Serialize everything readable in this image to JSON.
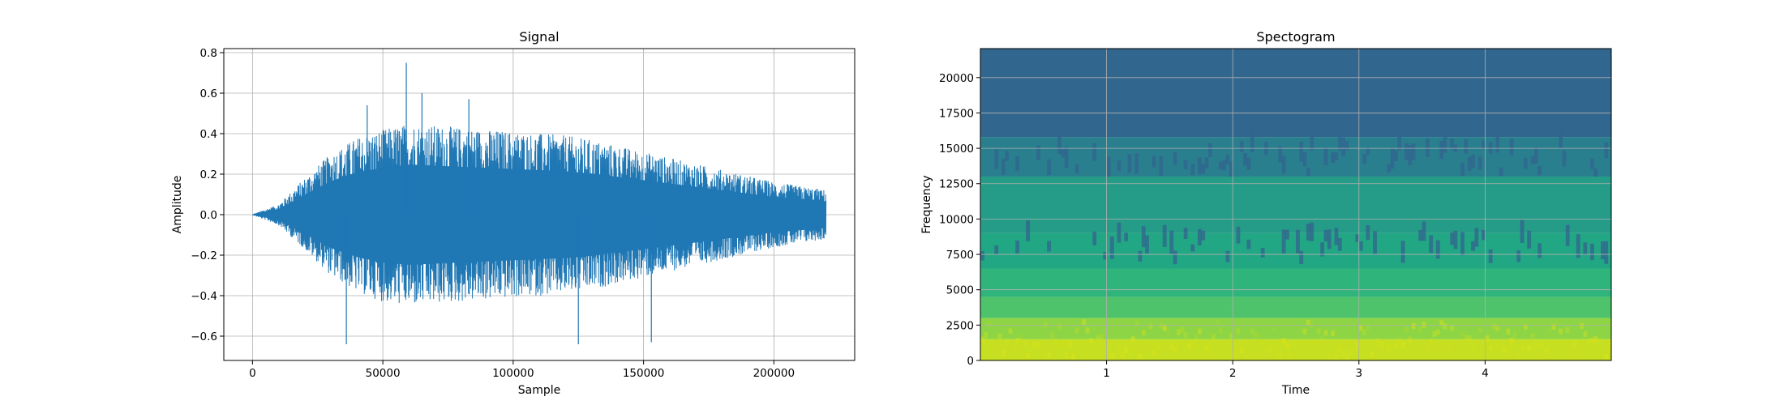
{
  "chart_data": [
    {
      "type": "line",
      "title": "Signal",
      "xlabel": "Sample",
      "ylabel": "Amplitude",
      "xlim": [
        -11000,
        231000
      ],
      "ylim": [
        -0.72,
        0.82
      ],
      "xticks": [
        0,
        50000,
        100000,
        150000,
        200000
      ],
      "xtick_labels": [
        "0",
        "50000",
        "100000",
        "150000",
        "200000"
      ],
      "yticks": [
        -0.6,
        -0.4,
        -0.2,
        0.0,
        0.2,
        0.4,
        0.6,
        0.8
      ],
      "ytick_labels": [
        "−0.6",
        "−0.4",
        "−0.2",
        "0.0",
        "0.2",
        "0.4",
        "0.6",
        "0.8"
      ],
      "grid": true,
      "color": "#1f77b4",
      "series": [
        {
          "x": [
            0,
            10000,
            20000,
            30000,
            40000,
            50000,
            60000,
            70000,
            80000,
            90000,
            100000,
            110000,
            120000,
            130000,
            140000,
            150000,
            160000,
            170000,
            180000,
            190000,
            200000,
            210000,
            220000
          ],
          "upper": [
            0.0,
            0.05,
            0.18,
            0.3,
            0.38,
            0.42,
            0.45,
            0.44,
            0.43,
            0.42,
            0.41,
            0.4,
            0.39,
            0.37,
            0.34,
            0.31,
            0.28,
            0.25,
            0.22,
            0.19,
            0.16,
            0.14,
            0.12
          ],
          "lower": [
            0.0,
            -0.05,
            -0.17,
            -0.3,
            -0.38,
            -0.43,
            -0.45,
            -0.44,
            -0.43,
            -0.42,
            -0.41,
            -0.4,
            -0.39,
            -0.37,
            -0.34,
            -0.31,
            -0.28,
            -0.25,
            -0.22,
            -0.19,
            -0.16,
            -0.14,
            -0.12
          ]
        }
      ],
      "peaks": [
        {
          "x": 59000,
          "y": 0.75
        },
        {
          "x": 36000,
          "y": -0.64
        },
        {
          "x": 125000,
          "y": -0.64
        },
        {
          "x": 153000,
          "y": -0.63
        },
        {
          "x": 65000,
          "y": 0.6
        },
        {
          "x": 83000,
          "y": 0.57
        },
        {
          "x": 44000,
          "y": 0.54
        }
      ]
    },
    {
      "type": "heatmap",
      "title": "Spectogram",
      "xlabel": "Time",
      "ylabel": "Frequency",
      "xlim": [
        0,
        5
      ],
      "ylim": [
        0,
        22050
      ],
      "xticks": [
        1,
        2,
        3,
        4
      ],
      "xtick_labels": [
        "1",
        "2",
        "3",
        "4"
      ],
      "yticks": [
        0,
        2500,
        5000,
        7500,
        10000,
        12500,
        15000,
        17500,
        20000
      ],
      "ytick_labels": [
        "0",
        "2500",
        "5000",
        "7500",
        "10000",
        "12500",
        "15000",
        "17500",
        "20000"
      ],
      "grid": true,
      "colormap": "viridis",
      "frequency_bands": [
        {
          "from": 0,
          "to": 1500,
          "color": "#c6e021"
        },
        {
          "from": 1500,
          "to": 3000,
          "color": "#8dd544"
        },
        {
          "from": 3000,
          "to": 4500,
          "color": "#4ec36b"
        },
        {
          "from": 4500,
          "to": 6500,
          "color": "#2fb47c"
        },
        {
          "from": 6500,
          "to": 9000,
          "color": "#22a785"
        },
        {
          "from": 9000,
          "to": 13000,
          "color": "#259c87"
        },
        {
          "from": 13000,
          "to": 15800,
          "color": "#2a7f8e"
        },
        {
          "from": 15800,
          "to": 22050,
          "color": "#31668e"
        }
      ]
    }
  ]
}
